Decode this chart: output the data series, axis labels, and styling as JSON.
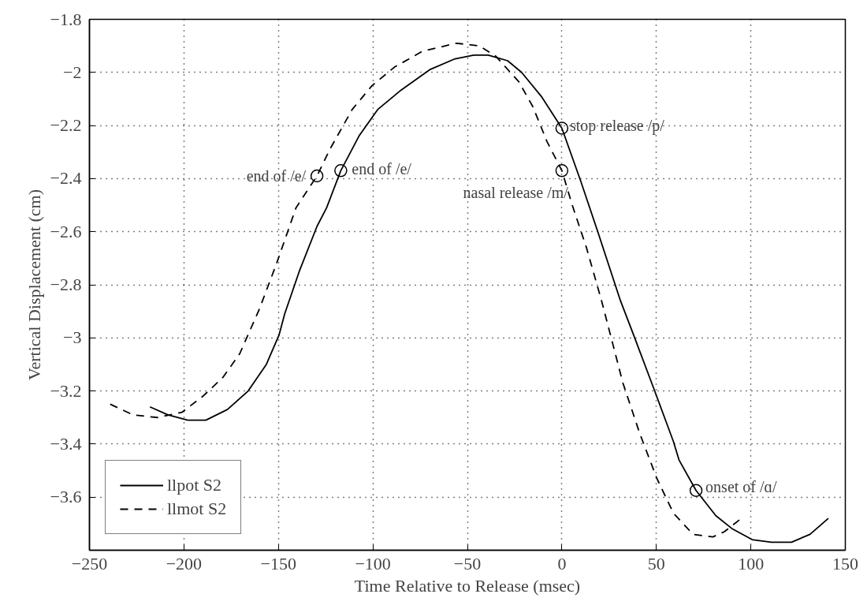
{
  "chart_data": {
    "type": "line",
    "xlabel": "Time Relative to Release (msec)",
    "ylabel": "Vertical Displacement (cm)",
    "xlim": [
      -250,
      150
    ],
    "ylim": [
      -3.8,
      -1.8
    ],
    "xticks": [
      -250,
      -200,
      -150,
      -100,
      -50,
      0,
      50,
      100,
      150
    ],
    "yticks": [
      -1.8,
      -2,
      -2.2,
      -2.4,
      -2.6,
      -2.8,
      -3,
      -3.2,
      -3.4,
      -3.6
    ],
    "grid": true,
    "legend": "bottom left",
    "marker": "none",
    "series": [
      {
        "name": "llpot S2",
        "color": "#000000",
        "line_style": "solid",
        "x": [
          -218,
          -208.5,
          -198,
          -188.4,
          -177,
          -166,
          -156.4,
          -149.7,
          -146.7,
          -139,
          -129.6,
          -124.5,
          -117,
          -107.4,
          -97.5,
          -85.7,
          -70,
          -57,
          -46.6,
          -39,
          -28.7,
          -21.3,
          -10.9,
          0,
          10,
          19,
          31,
          38,
          48.6,
          59,
          62,
          71,
          81.5,
          90.3,
          100.7,
          110.9,
          121.5,
          131.3,
          141
        ],
        "values": [
          -3.26,
          -3.29,
          -3.31,
          -3.31,
          -3.27,
          -3.2,
          -3.1,
          -2.99,
          -2.91,
          -2.75,
          -2.58,
          -2.51,
          -2.37,
          -2.24,
          -2.14,
          -2.07,
          -1.99,
          -1.95,
          -1.935,
          -1.935,
          -1.956,
          -2.0,
          -2.09,
          -2.21,
          -2.41,
          -2.6,
          -2.86,
          -2.99,
          -3.19,
          -3.39,
          -3.46,
          -3.575,
          -3.67,
          -3.72,
          -3.76,
          -3.77,
          -3.77,
          -3.74,
          -3.68
        ]
      },
      {
        "name": "llmot S2",
        "color": "#000000",
        "line_style": "dashed",
        "x": [
          -239,
          -227,
          -214,
          -201,
          -190,
          -179.5,
          -170.5,
          -160,
          -151,
          -140.7,
          -129.6,
          -122.8,
          -111,
          -100.5,
          -88.6,
          -73.7,
          -55.7,
          -43.6,
          -34.8,
          -22.7,
          -15.3,
          -7.9,
          0,
          5.5,
          13,
          21,
          32.3,
          41.2,
          50.3,
          59,
          69.4,
          79.9,
          86,
          95
        ],
        "values": [
          -3.25,
          -3.29,
          -3.3,
          -3.28,
          -3.22,
          -3.15,
          -3.06,
          -2.89,
          -2.72,
          -2.51,
          -2.39,
          -2.29,
          -2.14,
          -2.05,
          -1.98,
          -1.92,
          -1.89,
          -1.9,
          -1.94,
          -2.036,
          -2.13,
          -2.26,
          -2.37,
          -2.5,
          -2.66,
          -2.86,
          -3.17,
          -3.36,
          -3.53,
          -3.66,
          -3.74,
          -3.75,
          -3.73,
          -3.68
        ]
      }
    ],
    "annotations": [
      {
        "text": "end of /e/",
        "x": -129.6,
        "y": -2.39
      },
      {
        "text": "end of /e/",
        "x": -117,
        "y": -2.37
      },
      {
        "text": "stop release /p/",
        "x": 0,
        "y": -2.21
      },
      {
        "text": "nasal release /m/",
        "x": 0,
        "y": -2.37
      },
      {
        "text": "onset of /ɑ/",
        "x": 71,
        "y": -3.575
      }
    ]
  }
}
